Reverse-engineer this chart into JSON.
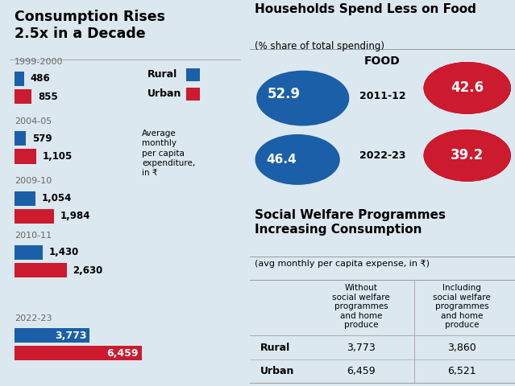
{
  "bg_color": "#dce8f0",
  "left_panel": {
    "title": "Consumption Rises\n2.5x in a Decade",
    "years": [
      "1999-2000",
      "2004-05",
      "2009-10",
      "2010-11",
      "2022-23"
    ],
    "rural": [
      486,
      579,
      1054,
      1430,
      3773
    ],
    "urban": [
      855,
      1105,
      1984,
      2630,
      6459
    ],
    "rural_color": "#1a5fa8",
    "urban_color": "#cc1a2e",
    "legend_note": "Average\nmonthly\nper capita\nexpenditure,\nin ₹"
  },
  "top_right_panel": {
    "title": "Households Spend Less on Food",
    "subtitle": "(% share of total spending)",
    "food_label": "FOOD",
    "rural_values": [
      52.9,
      46.4
    ],
    "urban_values": [
      42.6,
      39.2
    ],
    "years": [
      "2011-12",
      "2022-23"
    ],
    "rural_color": "#1a5fa8",
    "urban_color": "#cc1a2e"
  },
  "bottom_right_panel": {
    "title": "Social Welfare Programmes\nIncreasing Consumption",
    "subtitle": "(avg monthly per capita expense, in ₹)",
    "col1_header": "Without\nsocial welfare\nprogrammes\nand home\nproduce",
    "col2_header": "Including\nsocial welfare\nprogrammes\nand home\nproduce",
    "rows": [
      {
        "label": "Rural",
        "col1": "3,773",
        "col2": "3,860"
      },
      {
        "label": "Urban",
        "col1": "6,459",
        "col2": "6,521"
      }
    ]
  }
}
